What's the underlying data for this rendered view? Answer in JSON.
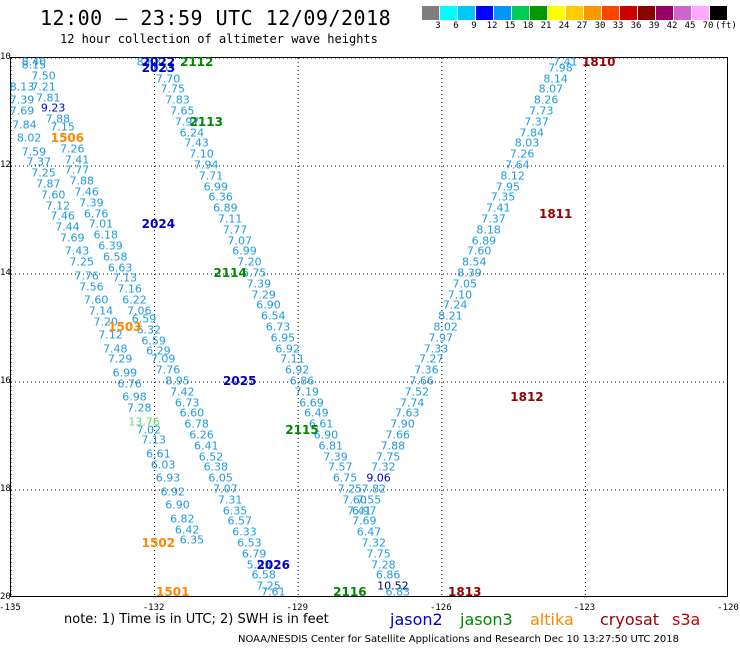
{
  "header": {
    "title": "12:00 — 23:59 UTC 12/09/2018",
    "subtitle": "12 hour collection of altimeter wave heights"
  },
  "colorbar": {
    "colors": [
      "#7f7f7f",
      "#00ffff",
      "#00c8ff",
      "#0000ff",
      "#0096ff",
      "#00cc55",
      "#009900",
      "#ffff00",
      "#ffcc00",
      "#ff9900",
      "#ff4400",
      "#cc0000",
      "#8b0000",
      "#990066",
      "#cc66cc",
      "#ffaaff",
      "#000000"
    ],
    "labels": [
      "3",
      "6",
      "9",
      "12",
      "15",
      "18",
      "21",
      "24",
      "27",
      "30",
      "33",
      "36",
      "39",
      "42",
      "45",
      "70",
      "(ft)"
    ]
  },
  "axes": {
    "lat_labels": [
      "10",
      "12",
      "14",
      "16",
      "18",
      "20"
    ],
    "lon_labels": [
      "-135",
      "-132",
      "-129",
      "-126",
      "-123",
      "-120"
    ]
  },
  "colors": {
    "wave_values": "#1e9be0",
    "jason2": "#0000cc",
    "jason3": "#008800",
    "altika": "#ff8800",
    "cryosat": "#990000",
    "s3a": "#cc0000"
  },
  "chart_data": {
    "type": "scatter",
    "lat_range": [
      10,
      20
    ],
    "lon_range": [
      -135,
      -120
    ],
    "grid": true,
    "passes": [
      {
        "tag": "2022",
        "mission": "jason2",
        "lon": -131.9,
        "lat": 10.0
      },
      {
        "tag": "2023",
        "mission": "jason2",
        "lon": -131.9,
        "lat": 10.2
      },
      {
        "tag": "2112",
        "mission": "jason3",
        "lon": -131.1,
        "lat": 10.0
      },
      {
        "tag": "2113",
        "mission": "jason3",
        "lon": -130.9,
        "lat": 11.2
      },
      {
        "tag": "1506",
        "mission": "altika",
        "lon": -133.8,
        "lat": 11.5
      },
      {
        "tag": "2024",
        "mission": "jason2",
        "lon": -131.9,
        "lat": 13.1
      },
      {
        "tag": "2114",
        "mission": "jason3",
        "lon": -130.4,
        "lat": 14.0
      },
      {
        "tag": "1503",
        "mission": "altika",
        "lon": -132.6,
        "lat": 15.0
      },
      {
        "tag": "2025",
        "mission": "jason2",
        "lon": -130.2,
        "lat": 16.0
      },
      {
        "tag": "2115",
        "mission": "jason3",
        "lon": -128.9,
        "lat": 16.9
      },
      {
        "tag": "1502",
        "mission": "altika",
        "lon": -131.9,
        "lat": 19.0
      },
      {
        "tag": "2026",
        "mission": "jason2",
        "lon": -129.5,
        "lat": 19.4
      },
      {
        "tag": "1501",
        "mission": "altika",
        "lon": -131.6,
        "lat": 20.0
      },
      {
        "tag": "2116",
        "mission": "jason3",
        "lon": -127.9,
        "lat": 20.0
      },
      {
        "tag": "1810",
        "mission": "cryosat",
        "lon": -122.7,
        "lat": 10.0
      },
      {
        "tag": "1811",
        "mission": "cryosat",
        "lon": -123.6,
        "lat": 12.9
      },
      {
        "tag": "1812",
        "mission": "cryosat",
        "lon": -124.2,
        "lat": 16.3
      },
      {
        "tag": "1813",
        "mission": "cryosat",
        "lon": -125.5,
        "lat": 19.9
      }
    ],
    "tracks": [
      {
        "name": "west-altika",
        "points": [
          [
            "8.40",
            -134.5,
            10.0
          ],
          [
            "8.15",
            -134.5,
            10.15
          ],
          [
            "7.50",
            -134.3,
            10.35
          ],
          [
            "8.13",
            -135.0,
            10.55
          ],
          [
            "7.21",
            -134.3,
            10.55
          ],
          [
            "7.39",
            -134.9,
            10.8
          ],
          [
            "7.81",
            -134.2,
            10.75
          ],
          [
            "7.69",
            -134.8,
            11.0
          ],
          [
            "9.23",
            -134.1,
            10.95
          ],
          [
            "7.88",
            -134.0,
            11.15
          ],
          [
            "7.84",
            -134.7,
            11.25
          ],
          [
            "7.15",
            -133.9,
            11.3
          ],
          [
            "8.02",
            -134.6,
            11.5
          ],
          [
            "7.59",
            -134.5,
            11.75
          ],
          [
            "7.26",
            -133.7,
            11.7
          ],
          [
            "7.37",
            -134.4,
            11.95
          ],
          [
            "7.41",
            -133.6,
            11.9
          ],
          [
            "7.25",
            -134.3,
            12.15
          ],
          [
            "7.77",
            -133.6,
            12.1
          ],
          [
            "7.87",
            -134.2,
            12.35
          ],
          [
            "7.88",
            -133.5,
            12.3
          ],
          [
            "7.60",
            -134.1,
            12.55
          ],
          [
            "7.46",
            -133.4,
            12.5
          ],
          [
            "7.12",
            -134.0,
            12.75
          ],
          [
            "7.39",
            -133.3,
            12.7
          ],
          [
            "7.46",
            -133.9,
            12.95
          ],
          [
            "6.76",
            -133.2,
            12.9
          ],
          [
            "7.44",
            -133.8,
            13.15
          ],
          [
            "7.01",
            -133.1,
            13.1
          ],
          [
            "7.69",
            -133.7,
            13.35
          ],
          [
            "6.18",
            -133.0,
            13.3
          ],
          [
            "7.43",
            -133.6,
            13.6
          ],
          [
            "6.39",
            -132.9,
            13.5
          ],
          [
            "7.25",
            -133.5,
            13.8
          ],
          [
            "6.58",
            -132.8,
            13.7
          ],
          [
            "7.76",
            -133.4,
            14.05
          ],
          [
            "6.63",
            -132.7,
            13.9
          ],
          [
            "7.56",
            -133.3,
            14.25
          ],
          [
            "7.13",
            -132.6,
            14.1
          ],
          [
            "7.60",
            -133.2,
            14.5
          ],
          [
            "7.16",
            -132.5,
            14.3
          ],
          [
            "7.14",
            -133.1,
            14.7
          ],
          [
            "6.22",
            -132.4,
            14.5
          ],
          [
            "7.20",
            -133.0,
            14.9
          ],
          [
            "7.06",
            -132.3,
            14.7
          ],
          [
            "7.12",
            -132.9,
            15.15
          ],
          [
            "6.59",
            -132.2,
            14.85
          ],
          [
            "7.48",
            -132.8,
            15.4
          ],
          [
            "6.32",
            -132.1,
            15.05
          ],
          [
            "7.29",
            -132.7,
            15.6
          ],
          [
            "6.59",
            -132.0,
            15.25
          ],
          [
            "6.99",
            -132.6,
            15.85
          ],
          [
            "6.29",
            -131.9,
            15.45
          ],
          [
            "6.76",
            -132.5,
            16.05
          ],
          [
            "7.09",
            -131.8,
            15.6
          ],
          [
            "6.98",
            -132.4,
            16.3
          ],
          [
            "7.76",
            -131.7,
            15.8
          ],
          [
            "7.28",
            -132.3,
            16.5
          ],
          [
            "13.76",
            -132.2,
            16.75
          ],
          [
            "7.02",
            -132.1,
            16.9
          ],
          [
            "7.13",
            -132.0,
            17.1
          ],
          [
            "6.61",
            -131.9,
            17.35
          ],
          [
            "6.03",
            -131.8,
            17.55
          ],
          [
            "6.93",
            -131.7,
            17.8
          ],
          [
            "6.92",
            -131.6,
            18.05
          ],
          [
            "6.90",
            -131.5,
            18.3
          ],
          [
            "6.82",
            -131.4,
            18.55
          ],
          [
            "6.42",
            -131.3,
            18.75
          ],
          [
            "6.35",
            -131.2,
            18.95
          ]
        ]
      },
      {
        "name": "mid-jason",
        "points": [
          [
            "8.63",
            -132.1,
            10.0
          ],
          [
            "7.55",
            -131.8,
            10.2
          ],
          [
            "7.70",
            -131.7,
            10.4
          ],
          [
            "7.75",
            -131.6,
            10.6
          ],
          [
            "7.83",
            -131.5,
            10.8
          ],
          [
            "7.65",
            -131.4,
            11.0
          ],
          [
            "7.97",
            -131.3,
            11.2
          ],
          [
            "6.24",
            -131.2,
            11.4
          ],
          [
            "7.43",
            -131.1,
            11.6
          ],
          [
            "7.10",
            -131.0,
            11.8
          ],
          [
            "7.94",
            -130.9,
            12.0
          ],
          [
            "7.71",
            -130.8,
            12.2
          ],
          [
            "6.99",
            -130.7,
            12.4
          ],
          [
            "6.36",
            -130.6,
            12.6
          ],
          [
            "6.89",
            -130.5,
            12.8
          ],
          [
            "7.11",
            -130.4,
            13.0
          ],
          [
            "7.77",
            -130.3,
            13.2
          ],
          [
            "7.07",
            -130.2,
            13.4
          ],
          [
            "6.99",
            -130.1,
            13.6
          ],
          [
            "7.20",
            -130.0,
            13.8
          ],
          [
            "6.75",
            -129.9,
            14.0
          ],
          [
            "7.39",
            -129.8,
            14.2
          ],
          [
            "7.29",
            -129.7,
            14.4
          ],
          [
            "6.90",
            -129.6,
            14.6
          ],
          [
            "6.54",
            -129.5,
            14.8
          ],
          [
            "6.73",
            -129.4,
            15.0
          ],
          [
            "6.95",
            -129.3,
            15.2
          ],
          [
            "6.92",
            -129.2,
            15.4
          ],
          [
            "7.11",
            -129.1,
            15.6
          ],
          [
            "6.92",
            -129.0,
            15.8
          ],
          [
            "6.86",
            -128.9,
            16.0
          ],
          [
            "7.19",
            -128.8,
            16.2
          ],
          [
            "6.69",
            -128.7,
            16.4
          ],
          [
            "6.49",
            -128.6,
            16.6
          ],
          [
            "6.61",
            -128.5,
            16.8
          ],
          [
            "6.90",
            -128.4,
            17.0
          ],
          [
            "6.81",
            -128.3,
            17.2
          ],
          [
            "7.39",
            -128.2,
            17.4
          ],
          [
            "7.57",
            -128.1,
            17.6
          ],
          [
            "6.75",
            -128.0,
            17.8
          ],
          [
            "7.25",
            -127.9,
            18.0
          ],
          [
            "7.60",
            -127.8,
            18.2
          ],
          [
            "7.41",
            -127.7,
            18.4
          ],
          [
            "7.69",
            -127.6,
            18.6
          ],
          [
            "6.47",
            -127.5,
            18.8
          ],
          [
            "7.32",
            -127.4,
            19.0
          ],
          [
            "7.75",
            -127.3,
            19.2
          ],
          [
            "7.28",
            -127.2,
            19.4
          ],
          [
            "6.86",
            -127.1,
            19.6
          ],
          [
            "10.52",
            -127.0,
            19.8
          ],
          [
            "6.83",
            -126.9,
            20.0
          ]
        ]
      },
      {
        "name": "mid-west",
        "points": [
          [
            "8.95",
            -131.5,
            16.0
          ],
          [
            "7.42",
            -131.4,
            16.2
          ],
          [
            "6.73",
            -131.3,
            16.4
          ],
          [
            "6.60",
            -131.2,
            16.6
          ],
          [
            "6.78",
            -131.1,
            16.8
          ],
          [
            "6.26",
            -131.0,
            17.0
          ],
          [
            "6.41",
            -130.9,
            17.2
          ],
          [
            "6.52",
            -130.8,
            17.4
          ],
          [
            "6.38",
            -130.7,
            17.6
          ],
          [
            "6.05",
            -130.6,
            17.8
          ],
          [
            "7.07",
            -130.5,
            18.0
          ],
          [
            "7.31",
            -130.4,
            18.2
          ],
          [
            "6.35",
            -130.3,
            18.4
          ],
          [
            "6.57",
            -130.2,
            18.6
          ],
          [
            "6.33",
            -130.1,
            18.8
          ],
          [
            "6.53",
            -130.0,
            19.0
          ],
          [
            "6.79",
            -129.9,
            19.2
          ],
          [
            "5.93",
            -129.8,
            19.4
          ],
          [
            "6.58",
            -129.7,
            19.6
          ],
          [
            "7.25",
            -129.6,
            19.8
          ],
          [
            "7.61",
            -129.5,
            20.0
          ]
        ]
      },
      {
        "name": "east-cryosat",
        "points": [
          [
            "7.41",
            -123.4,
            10.0
          ],
          [
            "7.98",
            -123.5,
            10.2
          ],
          [
            "8.14",
            -123.6,
            10.4
          ],
          [
            "8.07",
            -123.7,
            10.6
          ],
          [
            "8.26",
            -123.8,
            10.8
          ],
          [
            "7.73",
            -123.9,
            11.0
          ],
          [
            "7.37",
            -124.0,
            11.2
          ],
          [
            "7.84",
            -124.1,
            11.4
          ],
          [
            "8.03",
            -124.2,
            11.6
          ],
          [
            "7.26",
            -124.3,
            11.8
          ],
          [
            "7.64",
            -124.4,
            12.0
          ],
          [
            "8.12",
            -124.5,
            12.2
          ],
          [
            "7.95",
            -124.6,
            12.4
          ],
          [
            "7.35",
            -124.7,
            12.6
          ],
          [
            "7.41",
            -124.8,
            12.8
          ],
          [
            "7.37",
            -124.9,
            13.0
          ],
          [
            "8.18",
            -125.0,
            13.2
          ],
          [
            "6.89",
            -125.1,
            13.4
          ],
          [
            "7.60",
            -125.2,
            13.6
          ],
          [
            "8.54",
            -125.3,
            13.8
          ],
          [
            "8.39",
            -125.4,
            14.0
          ],
          [
            "7.05",
            -125.5,
            14.2
          ],
          [
            "7.10",
            -125.6,
            14.4
          ],
          [
            "7.24",
            -125.7,
            14.6
          ],
          [
            "8.21",
            -125.8,
            14.8
          ],
          [
            "8.02",
            -125.9,
            15.0
          ],
          [
            "7.97",
            -126.0,
            15.2
          ],
          [
            "7.33",
            -126.1,
            15.4
          ],
          [
            "7.27",
            -126.2,
            15.6
          ],
          [
            "7.36",
            -126.3,
            15.8
          ],
          [
            "7.66",
            -126.4,
            16.0
          ],
          [
            "7.52",
            -126.5,
            16.2
          ],
          [
            "7.74",
            -126.6,
            16.4
          ],
          [
            "7.63",
            -126.7,
            16.6
          ],
          [
            "7.90",
            -126.8,
            16.8
          ],
          [
            "7.66",
            -126.9,
            17.0
          ],
          [
            "7.88",
            -127.0,
            17.2
          ],
          [
            "7.75",
            -127.1,
            17.4
          ],
          [
            "7.32",
            -127.2,
            17.6
          ],
          [
            "9.06",
            -127.3,
            17.8
          ],
          [
            "7.82",
            -127.4,
            18.0
          ],
          [
            "7.55",
            -127.5,
            18.2
          ],
          [
            "6.97",
            -127.6,
            18.4
          ]
        ]
      }
    ]
  },
  "note": "note: 1) Time is in UTC; 2) SWH is in feet",
  "legend": [
    {
      "label": "jason2",
      "color": "#0000cc"
    },
    {
      "label": "jason3",
      "color": "#008800"
    },
    {
      "label": "altika",
      "color": "#ff8800"
    },
    {
      "label": "cryosat",
      "color": "#990000"
    },
    {
      "label": "s3a",
      "color": "#cc0000"
    }
  ],
  "credit": "NOAA/NESDIS Center for Satellite Applications and Research    Dec 10 13:27:50 UTC 2018"
}
